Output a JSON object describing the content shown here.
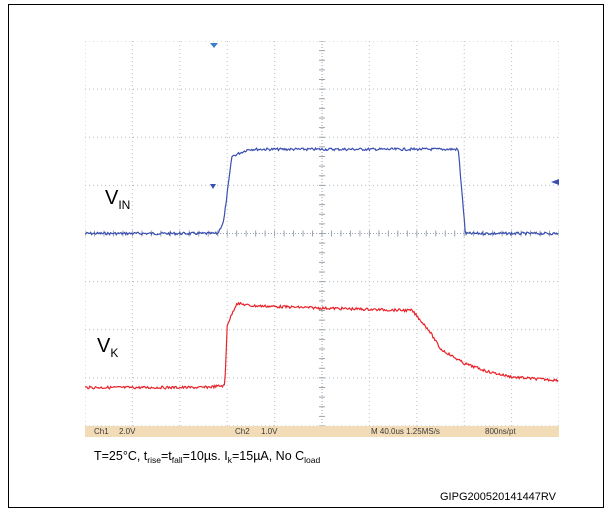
{
  "chart_data": {
    "type": "line",
    "x_unit": "µs",
    "x_divisions": 10,
    "x_per_div": 40.0,
    "xlim": [
      0,
      400
    ],
    "grid": true,
    "series": [
      {
        "name": "V_IN",
        "channel": "Ch1",
        "color": "#3a4fb0",
        "volts_per_div": 2.0,
        "x": [
          0,
          112,
          117,
          124,
          138,
          300,
          315,
          321,
          400
        ],
        "y": [
          0.0,
          0.0,
          0.5,
          3.2,
          3.5,
          3.5,
          3.5,
          0.0,
          0.0
        ]
      },
      {
        "name": "V_K",
        "channel": "Ch2",
        "color": "#e8232a",
        "volts_per_div": 1.0,
        "x": [
          0,
          100,
          118,
          120,
          128,
          140,
          200,
          276,
          290,
          300,
          320,
          340,
          360,
          380,
          400
        ],
        "y": [
          0.0,
          0.0,
          0.04,
          1.3,
          1.75,
          1.7,
          1.65,
          1.6,
          1.2,
          0.8,
          0.5,
          0.33,
          0.22,
          0.18,
          0.15
        ]
      }
    ]
  },
  "scope": {
    "ch1_label": "Ch1",
    "ch1_scale": "2.0V",
    "ch2_label": "Ch2",
    "ch2_scale": "1.0V",
    "timebase": "M 40.0us 1.25MS/s",
    "record": "800ns/pt",
    "status_color": "#f2dcb8"
  },
  "labels": {
    "vin_main": "V",
    "vin_sub": "IN",
    "vk_main": "V",
    "vk_sub": "K"
  },
  "caption": {
    "t1": "T=25°C, t",
    "s1": "rise",
    "t2": "=t",
    "s2": "fall",
    "t3": "=10µs. I",
    "s3": "k",
    "t4": "=15µA, No C",
    "s4": "load"
  },
  "figure_id": "GIPG200520141447RV"
}
